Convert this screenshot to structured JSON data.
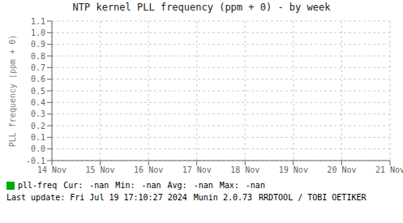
{
  "chart_data": {
    "type": "line",
    "title": "NTP kernel PLL frequency (ppm + 0) - by week",
    "y_label": "PLL frequency (ppm + 0)",
    "categories": [
      "14 Nov",
      "15 Nov",
      "16 Nov",
      "17 Nov",
      "18 Nov",
      "19 Nov",
      "20 Nov",
      "21 Nov"
    ],
    "series": [
      {
        "name": "pll-freq",
        "color": "#00aa00",
        "values": [
          null,
          null,
          null,
          null,
          null,
          null,
          null,
          null
        ]
      }
    ],
    "ylim": [
      -0.1,
      1.1
    ],
    "yticks": [
      -0.1,
      {
        "value": 0,
        "label": "0.0"
      },
      0.1,
      0.2,
      0.3,
      0.4,
      0.5,
      0.6,
      0.7,
      0.8,
      0.9,
      {
        "value": 1,
        "label": "1.0"
      },
      1.1
    ],
    "grid": true,
    "annotations": [
      "Cur:",
      "-nan",
      "Min:",
      "-nan",
      "Avg:",
      "-nan",
      "Max:",
      "-nan",
      "Last update: Fri Jul 19 17:10:27 2024",
      "Munin 2.0.73",
      "RRDTOOL / TOBI OETIKER"
    ]
  }
}
